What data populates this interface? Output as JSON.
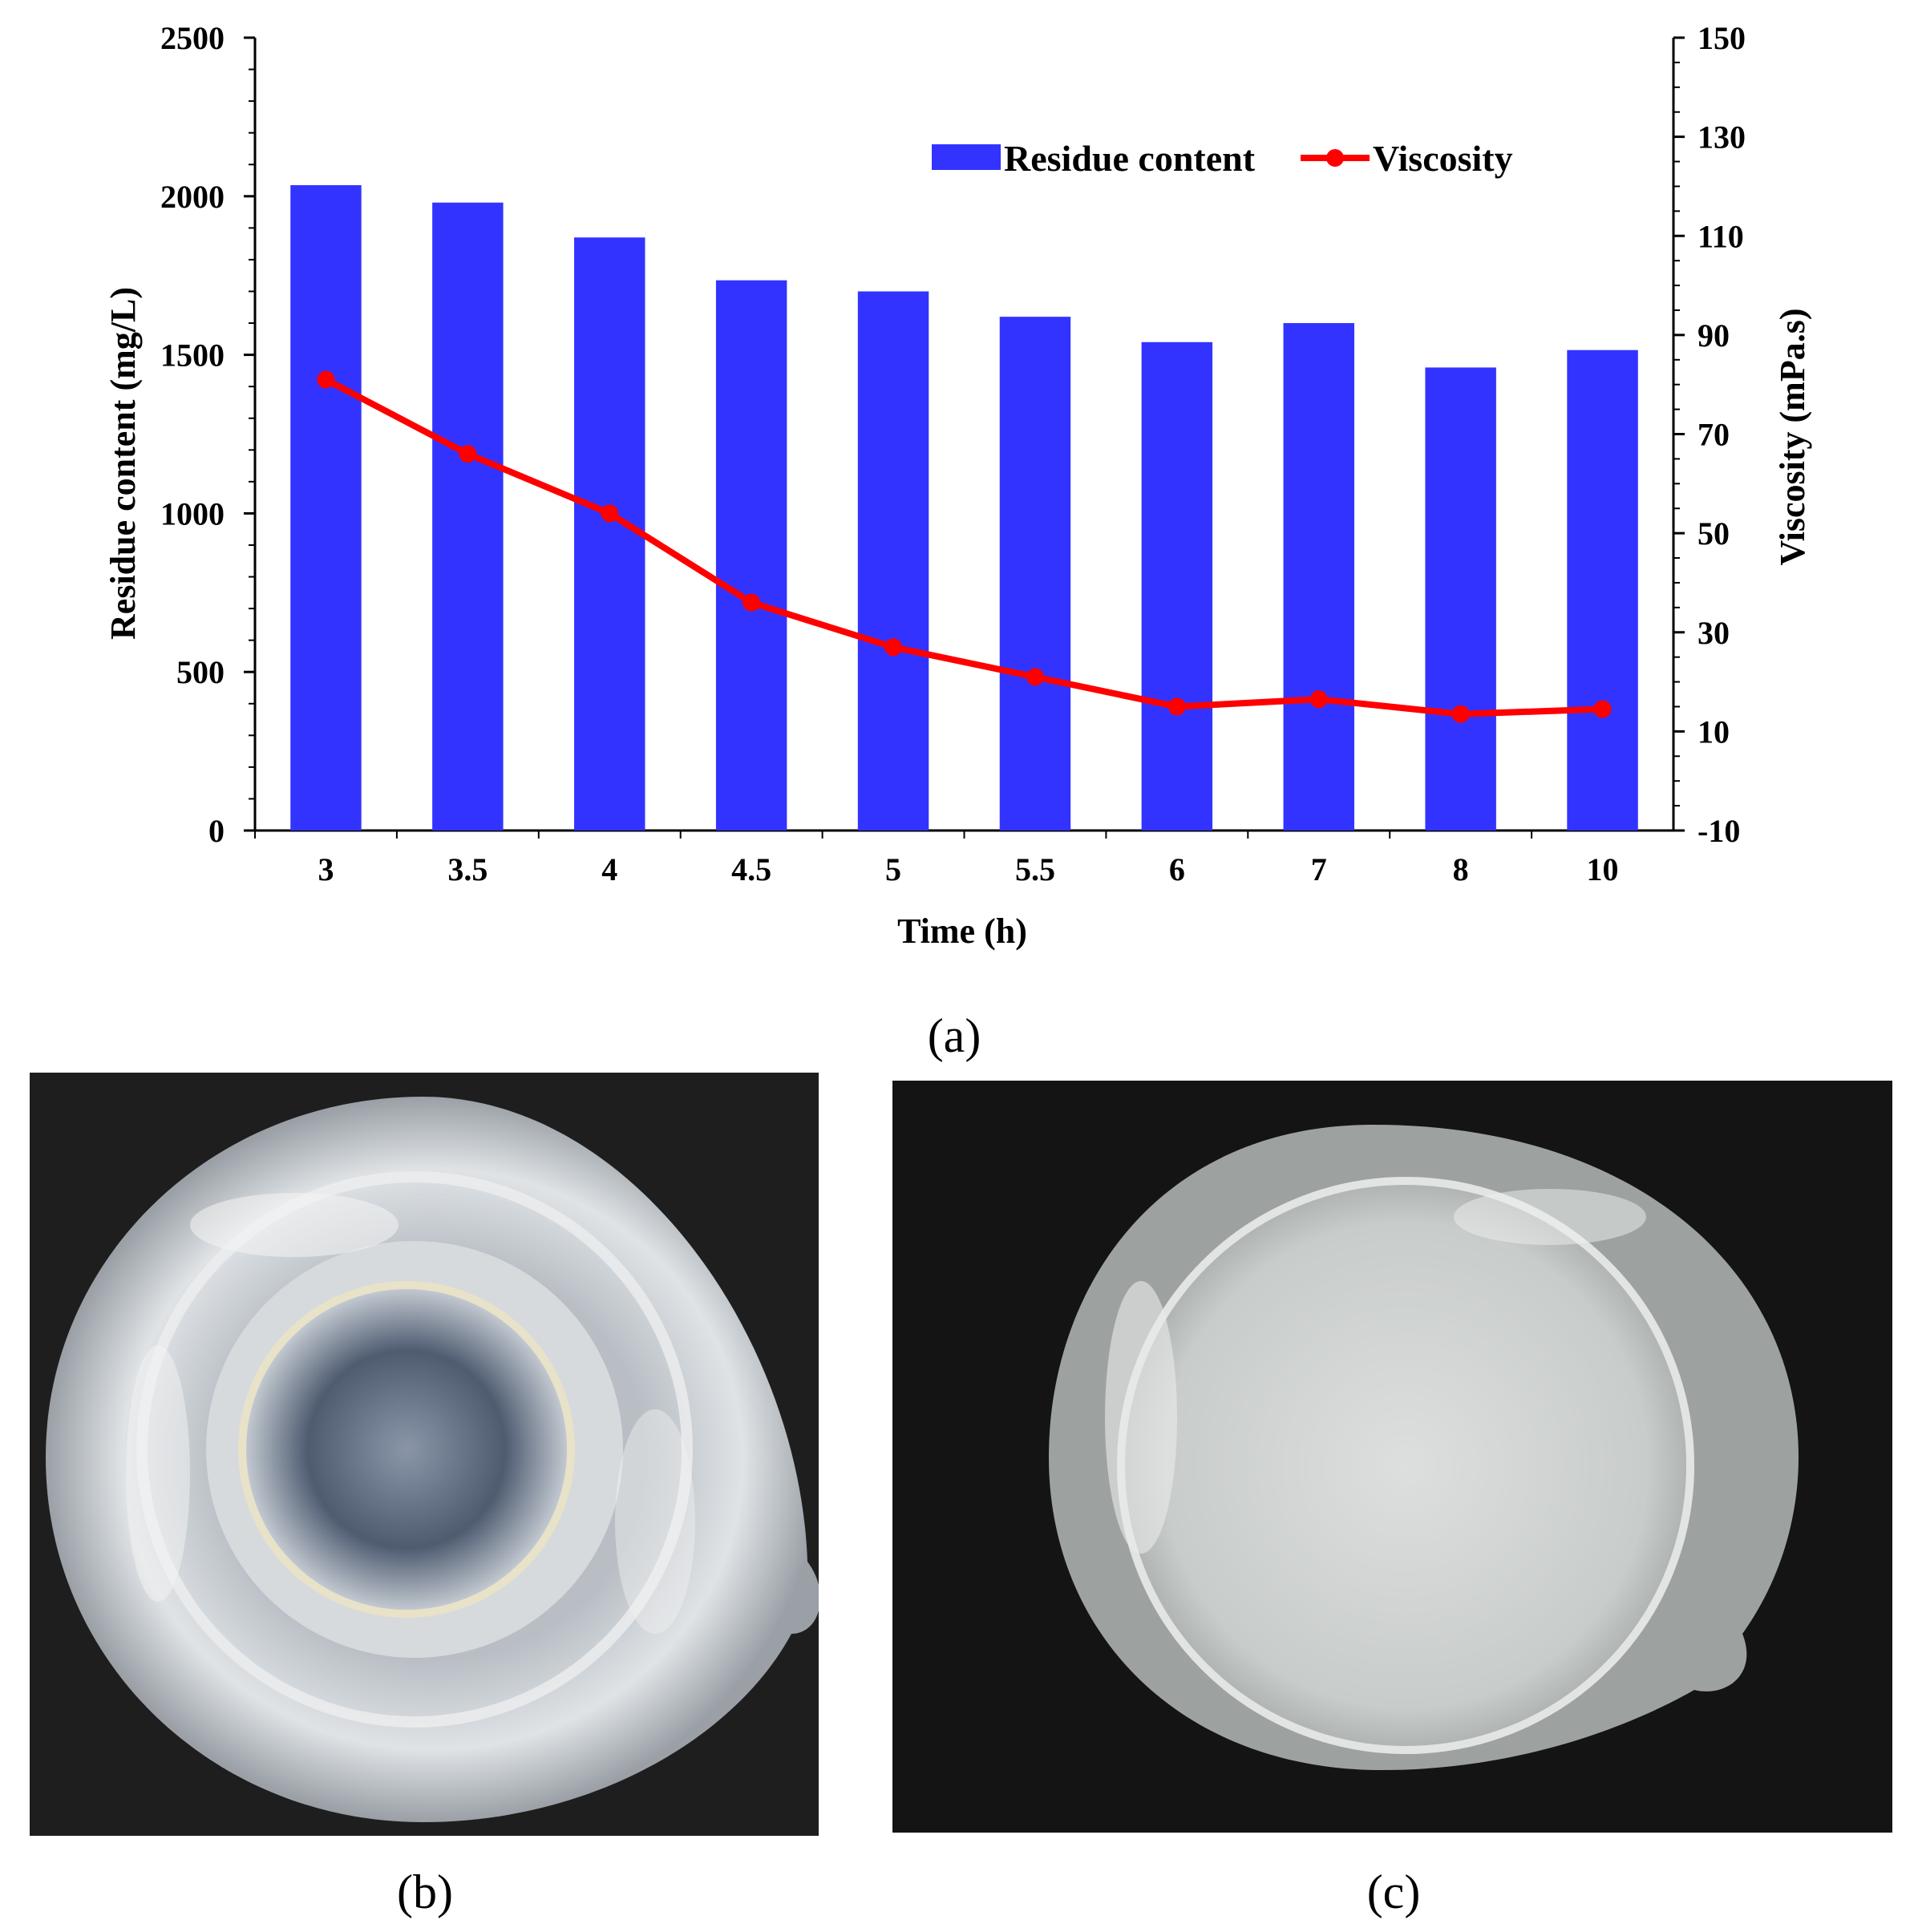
{
  "panel_labels": {
    "a": "(a)",
    "b": "(b)",
    "c": "(c)"
  },
  "chart_data": {
    "type": "bar+line",
    "categories": [
      "3",
      "3.5",
      "4",
      "4.5",
      "5",
      "5.5",
      "6",
      "7",
      "8",
      "10"
    ],
    "xlabel": "Time (h)",
    "ylabel_left": "Residue content (mg/L)",
    "ylabel_right": "Viscosity (mPa.s)",
    "y_left": {
      "min": 0,
      "max": 2500,
      "ticks": [
        0,
        500,
        1000,
        1500,
        2000,
        2500
      ]
    },
    "y_right": {
      "min": -10,
      "max": 150,
      "ticks": [
        -10,
        10,
        30,
        50,
        70,
        90,
        110,
        130,
        150
      ]
    },
    "series": [
      {
        "name": "Residue content",
        "type": "bar",
        "axis": "left",
        "color": "#3333ff",
        "values": [
          2035,
          1980,
          1870,
          1735,
          1700,
          1620,
          1540,
          1600,
          1460,
          1515
        ]
      },
      {
        "name": "Viscosity",
        "type": "line",
        "axis": "right",
        "color": "#ff0000",
        "values": [
          81,
          66,
          54,
          36,
          27,
          21,
          15,
          16.5,
          13.5,
          14.5
        ]
      }
    ],
    "legend_position": "top-right",
    "grid": false
  },
  "photos": {
    "b": {
      "background": "#1f1f1f",
      "content": "glass beaker, top view"
    },
    "c": {
      "background": "#141414",
      "content": "glass beaker with cloudy liquid, top view"
    }
  }
}
